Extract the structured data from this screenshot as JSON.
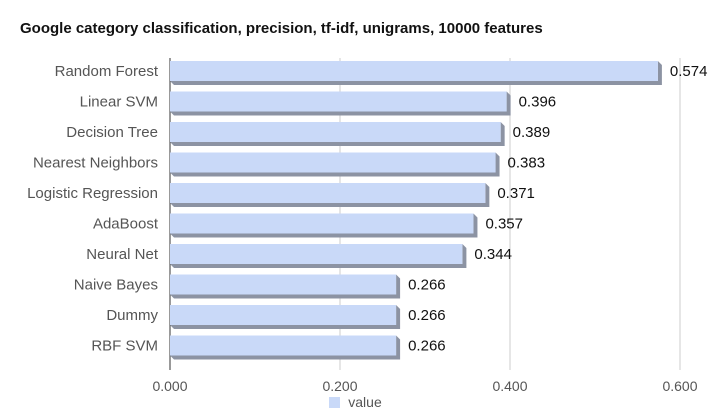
{
  "chart_data": {
    "type": "bar",
    "orientation": "horizontal",
    "title": "Google category classification, precision, tf-idf, unigrams, 10000 features",
    "categories": [
      "Random Forest",
      "Linear SVM",
      "Decision Tree",
      "Nearest Neighbors",
      "Logistic Regression",
      "AdaBoost",
      "Neural Net",
      "Naive Bayes",
      "Dummy",
      "RBF SVM"
    ],
    "series": [
      {
        "name": "value",
        "values": [
          0.574,
          0.396,
          0.389,
          0.383,
          0.371,
          0.357,
          0.344,
          0.266,
          0.266,
          0.266
        ]
      }
    ],
    "data_labels": [
      "0.574",
      "0.396",
      "0.389",
      "0.383",
      "0.371",
      "0.357",
      "0.344",
      "0.266",
      "0.266",
      "0.266"
    ],
    "xlim": [
      0,
      0.6
    ],
    "x_ticks": [
      0,
      0.2,
      0.4,
      0.6
    ],
    "x_tick_labels": [
      "0.000",
      "0.200",
      "0.400",
      "0.600"
    ],
    "xlabel": "",
    "ylabel": "",
    "grid": true,
    "legend_position": "bottom",
    "colors": {
      "bar": "#c9d9f8",
      "bar_shadow": "#8c93a3",
      "grid": "#cccccc",
      "axis": "#333333",
      "label_text": "#555555",
      "value_text": "#111111"
    }
  }
}
